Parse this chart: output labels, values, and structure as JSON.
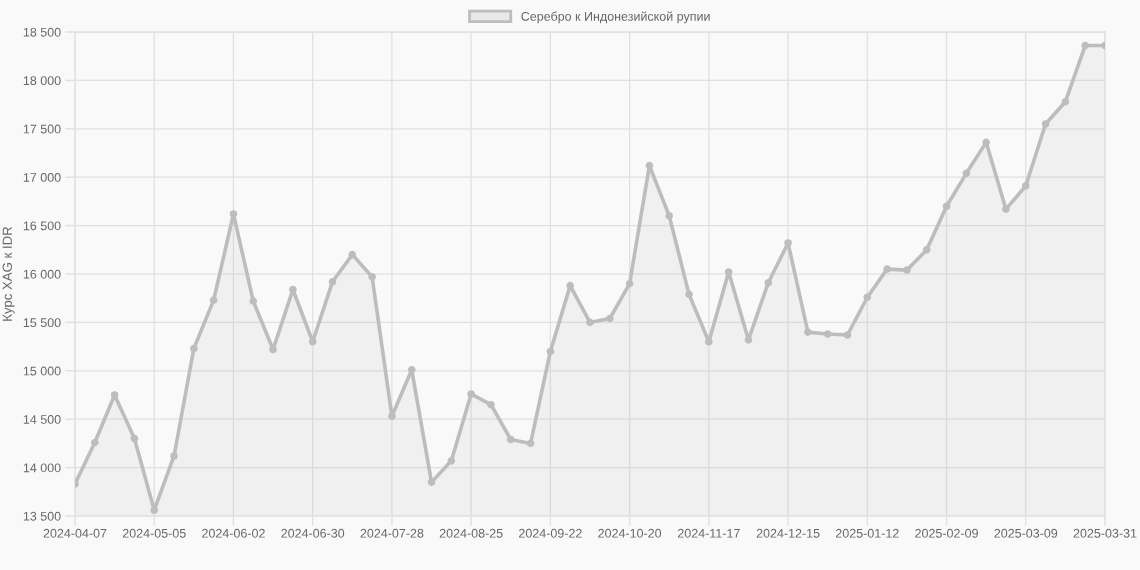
{
  "chart_data": {
    "type": "area",
    "ylabel": "Курс XAG к IDR",
    "categories": [
      "2024-04-07",
      null,
      null,
      null,
      "2024-05-05",
      null,
      null,
      null,
      "2024-06-02",
      null,
      null,
      null,
      "2024-06-30",
      null,
      null,
      null,
      "2024-07-28",
      null,
      null,
      null,
      "2024-08-25",
      null,
      null,
      null,
      "2024-09-22",
      null,
      null,
      null,
      "2024-10-20",
      null,
      null,
      null,
      "2024-11-17",
      null,
      null,
      null,
      "2024-12-15",
      null,
      null,
      null,
      "2025-01-12",
      null,
      null,
      null,
      "2025-02-09",
      null,
      null,
      null,
      "2025-03-09",
      null,
      null,
      null,
      "2025-03-31"
    ],
    "series": [
      {
        "name": "Серебро к Индонезийской рупии",
        "color": "#bdbdbd",
        "values": [
          13830,
          14260,
          14750,
          14300,
          13560,
          14120,
          15230,
          15730,
          16620,
          15720,
          15220,
          15840,
          15300,
          15920,
          16200,
          15970,
          14530,
          15010,
          13850,
          14070,
          14760,
          14650,
          14290,
          14250,
          15200,
          15880,
          15500,
          15540,
          15900,
          17120,
          16600,
          15790,
          15300,
          16020,
          15320,
          15910,
          16320,
          15400,
          15380,
          15370,
          15760,
          16050,
          16040,
          16250,
          16700,
          17040,
          17360,
          16670,
          16910,
          17550,
          17780,
          18360,
          18360
        ]
      }
    ],
    "ylim": [
      13500,
      18500
    ],
    "yticks": [
      {
        "value": 13500,
        "label": "13 500"
      },
      {
        "value": 14000,
        "label": "14 000"
      },
      {
        "value": 14500,
        "label": "14 500"
      },
      {
        "value": 15000,
        "label": "15 000"
      },
      {
        "value": 15500,
        "label": "15 500"
      },
      {
        "value": 16000,
        "label": "16 000"
      },
      {
        "value": 16500,
        "label": "16 500"
      },
      {
        "value": 17000,
        "label": "17 000"
      },
      {
        "value": 17500,
        "label": "17 500"
      },
      {
        "value": 18000,
        "label": "18 000"
      },
      {
        "value": 18500,
        "label": "18 500"
      }
    ],
    "grid": true,
    "legend": "top",
    "marker": "circle"
  }
}
